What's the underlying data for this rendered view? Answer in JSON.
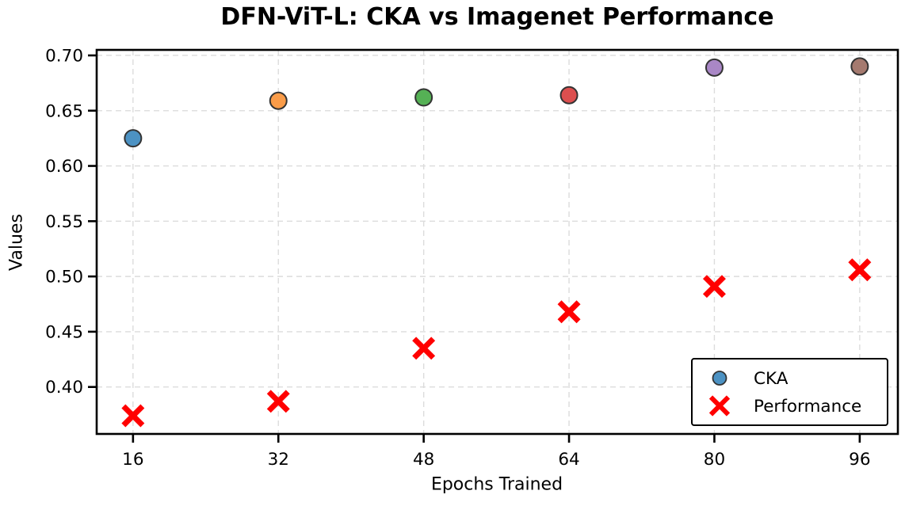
{
  "title": "DFN-ViT-L: CKA vs Imagenet Performance",
  "chart_data": {
    "type": "scatter",
    "title": "DFN-ViT-L: CKA vs Imagenet Performance",
    "xlabel": "Epochs Trained",
    "ylabel": "Values",
    "x": [
      16,
      32,
      48,
      64,
      80,
      96
    ],
    "series": [
      {
        "name": "CKA",
        "marker": "circle",
        "values": [
          0.625,
          0.659,
          0.662,
          0.664,
          0.689,
          0.69
        ],
        "point_colors": [
          "#4C92C3",
          "#FA9C49",
          "#55B155",
          "#DC4F4F",
          "#A987C6",
          "#A57A6F"
        ],
        "edge_color": "#333333"
      },
      {
        "name": "Performance",
        "marker": "x",
        "values": [
          0.374,
          0.387,
          0.435,
          0.468,
          0.491,
          0.506
        ],
        "color": "#FF0000"
      }
    ],
    "x_tick_labels": [
      "16",
      "32",
      "48",
      "64",
      "80",
      "96"
    ],
    "y_tick_labels": [
      "0.40",
      "0.45",
      "0.50",
      "0.55",
      "0.60",
      "0.65",
      "0.70"
    ],
    "y_ticks": [
      0.4,
      0.45,
      0.5,
      0.55,
      0.6,
      0.65,
      0.7
    ],
    "xlim": [
      12.0,
      100.2
    ],
    "ylim": [
      0.3575,
      0.705
    ],
    "grid": true,
    "grid_color": "#dcdcdc",
    "axis_color": "#000000",
    "background_color": "#ffffff",
    "legend_position": "lower right",
    "legend": [
      "CKA",
      "Performance"
    ]
  }
}
